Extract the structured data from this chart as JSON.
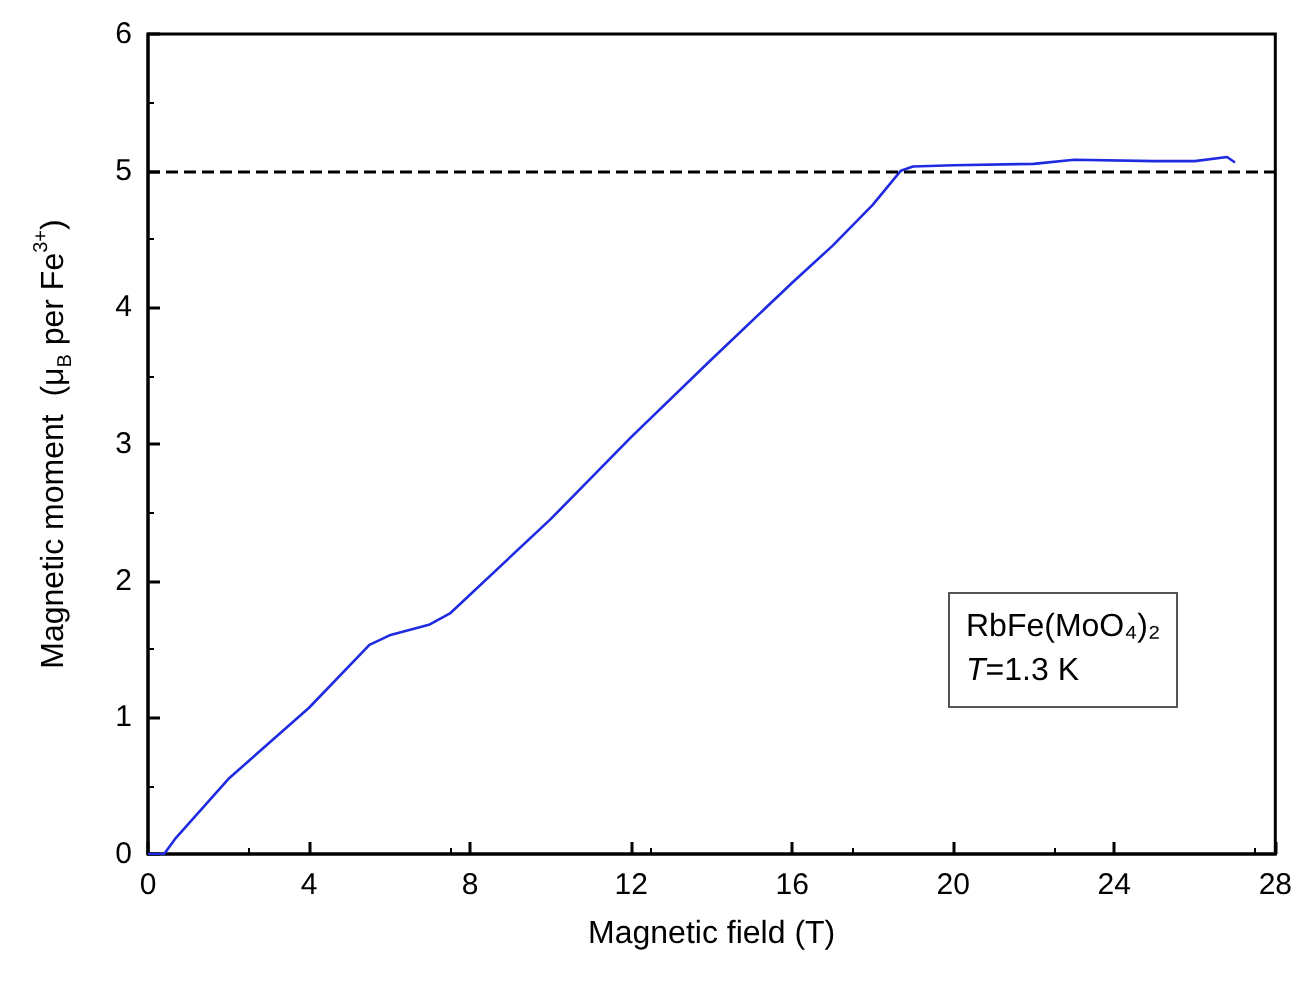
{
  "chart_data": {
    "type": "line",
    "xlabel": "Magnetic field (T)",
    "ylabel": "Magnetic moment  (μ$_{B}$ per Fe$^{3+}$)",
    "x": [
      0,
      0.4,
      0.7,
      2,
      4,
      5.5,
      6,
      7,
      7.5,
      10,
      12,
      14,
      16,
      17,
      18,
      18.7,
      19,
      20,
      22,
      23,
      25,
      26,
      26.8,
      27
    ],
    "series": [
      {
        "color": "#1f2be0",
        "values": [
          0,
          0,
          0.12,
          0.55,
          1.07,
          1.53,
          1.6,
          1.68,
          1.76,
          2.45,
          3.05,
          3.62,
          4.18,
          4.45,
          4.75,
          5.0,
          5.03,
          5.04,
          5.05,
          5.08,
          5.07,
          5.07,
          5.1,
          5.06
        ]
      }
    ],
    "xlim": [
      0,
      28
    ],
    "xticks": [
      0,
      4,
      8,
      12,
      16,
      20,
      24,
      28
    ],
    "ylim": [
      0,
      6
    ],
    "yticks": [
      0,
      1,
      2,
      3,
      4,
      5,
      6
    ],
    "ref_lines": [
      {
        "axis": "y",
        "value": 5,
        "color": "#000000",
        "line_style": "dashed"
      }
    ],
    "annotations": [
      "RbFe(MoO₄)₂",
      "T=1.3 K"
    ],
    "marker": "none",
    "line_style": "solid"
  }
}
